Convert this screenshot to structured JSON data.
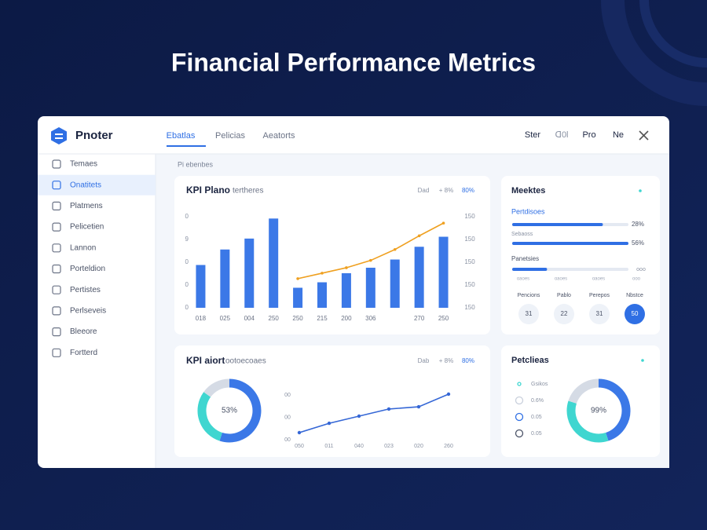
{
  "page_title": "Financial Performance Metrics",
  "header": {
    "brand": "Pnoter",
    "tabs": [
      "Ebatlas",
      "Pelicias",
      "Aeatorts"
    ],
    "actions": [
      "Ster",
      "ᗡ0l",
      "Pro",
      "Ne"
    ]
  },
  "sidebar": {
    "items": [
      "Temaes",
      "Onatitets",
      "Platmens",
      "Pelicetien",
      "Lannon",
      "Porteldion",
      "Pertistes",
      "Perlseveis",
      "Bleeore",
      "Fortterd"
    ],
    "active": 1
  },
  "breadcrumb": "Pi ebenbes",
  "kpi_panel": {
    "title": "KPI Plano",
    "subtitle": "tertheres",
    "controls": [
      "Dad",
      "+ 8%",
      "80%"
    ],
    "chart": {
      "type": "bar",
      "categories": [
        "018",
        "025",
        "004",
        "250",
        "250",
        "215",
        "200",
        "306",
        null,
        "270",
        "250"
      ],
      "series": [
        {
          "type": "bar",
          "color": "#3b78e7",
          "values": [
            47,
            64,
            76,
            98,
            22,
            28,
            38,
            44,
            53,
            67,
            78
          ]
        },
        {
          "type": "line",
          "color": "#efa020",
          "values": [
            null,
            null,
            null,
            null,
            32,
            38,
            44,
            52,
            64,
            79,
            93
          ]
        }
      ],
      "ylim": [
        0,
        100
      ],
      "y_labels": [
        "0",
        "9",
        "0",
        "0",
        "0"
      ],
      "y2_labels": [
        "150",
        "150",
        "150",
        "150",
        "150"
      ]
    }
  },
  "trend_panel": {
    "title": "KPI aiort",
    "subtitle": "ootoecoaes",
    "controls": [
      "Dab",
      "+ 8%",
      "80%"
    ],
    "donut": {
      "type": "pie",
      "label": "53%",
      "values": [
        55,
        30,
        15
      ],
      "colors": [
        "#3b78e7",
        "#3fd6d0",
        "#d5dbe5"
      ]
    },
    "chart": {
      "type": "line",
      "categories": [
        "050",
        "011",
        "040",
        "023",
        "020",
        "260"
      ],
      "values": [
        20,
        37,
        50,
        63,
        67,
        90
      ],
      "color": "#3567d6",
      "ylim": [
        0,
        100
      ],
      "y_labels": [
        "00",
        "00",
        "00"
      ]
    }
  },
  "metrics_panel": {
    "title": "Meektes",
    "subtitle": "Pertdisoes",
    "rows": [
      {
        "caption": null,
        "fill": 78,
        "label": "28%"
      },
      {
        "caption": "Sebaoss",
        "fill": 100,
        "label": "56%"
      }
    ],
    "section": "Panetsies",
    "section_bar": {
      "fill": 30,
      "label": "ooo"
    },
    "section_captions": [
      "oaoes",
      "oaoes",
      "oaoes",
      "ooo"
    ],
    "buttons": [
      {
        "label": "Pencions",
        "value": "31"
      },
      {
        "label": "Pablo",
        "value": "22"
      },
      {
        "label": "Perepos",
        "value": "31"
      },
      {
        "label": "Nbstce",
        "value": "50"
      }
    ],
    "active_button": 3
  },
  "policies_panel": {
    "title": "Petclieas",
    "legend": [
      "Gsikos",
      "0.6%",
      "0.05",
      "0.05"
    ],
    "donut": {
      "type": "pie",
      "label": "99%",
      "values": [
        45,
        35,
        20
      ],
      "colors": [
        "#3b78e7",
        "#3fd6d0",
        "#d5dbe5"
      ]
    }
  }
}
